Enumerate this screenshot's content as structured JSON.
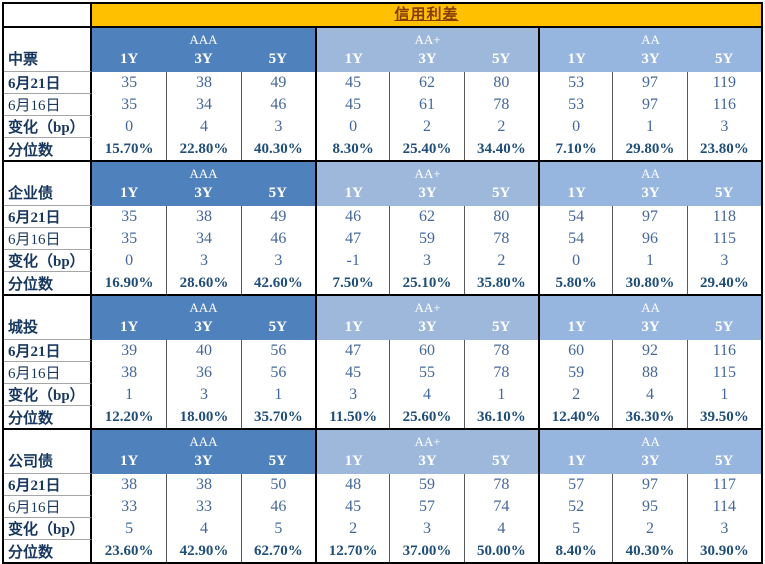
{
  "title": "信用利差",
  "table": {
    "ratings": [
      "AAA",
      "AA+",
      "AA"
    ],
    "tenors": [
      "1Y",
      "3Y",
      "5Y"
    ],
    "row_labels": [
      "6月21日",
      "6月16日",
      "变化（bp）",
      "分位数"
    ],
    "sections": [
      {
        "name": "中票",
        "rows": [
          [
            "35",
            "38",
            "49",
            "45",
            "62",
            "80",
            "53",
            "97",
            "119"
          ],
          [
            "35",
            "34",
            "46",
            "45",
            "61",
            "78",
            "53",
            "97",
            "116"
          ],
          [
            "0",
            "4",
            "3",
            "0",
            "2",
            "2",
            "0",
            "1",
            "3"
          ],
          [
            "15.70%",
            "22.80%",
            "40.30%",
            "8.30%",
            "25.40%",
            "34.40%",
            "7.10%",
            "29.80%",
            "23.80%"
          ]
        ]
      },
      {
        "name": "企业债",
        "rows": [
          [
            "35",
            "38",
            "49",
            "46",
            "62",
            "80",
            "54",
            "97",
            "118"
          ],
          [
            "35",
            "34",
            "46",
            "47",
            "59",
            "78",
            "54",
            "96",
            "115"
          ],
          [
            "0",
            "3",
            "3",
            "-1",
            "3",
            "2",
            "0",
            "1",
            "3"
          ],
          [
            "16.90%",
            "28.60%",
            "42.60%",
            "7.50%",
            "25.10%",
            "35.80%",
            "5.80%",
            "30.80%",
            "29.40%"
          ]
        ]
      },
      {
        "name": "城投",
        "rows": [
          [
            "39",
            "40",
            "56",
            "47",
            "60",
            "78",
            "60",
            "92",
            "116"
          ],
          [
            "38",
            "36",
            "56",
            "45",
            "55",
            "78",
            "59",
            "88",
            "115"
          ],
          [
            "1",
            "3",
            "1",
            "3",
            "4",
            "1",
            "2",
            "4",
            "1"
          ],
          [
            "12.20%",
            "18.00%",
            "35.70%",
            "11.50%",
            "25.60%",
            "36.10%",
            "12.40%",
            "36.30%",
            "39.50%"
          ]
        ]
      },
      {
        "name": "公司债",
        "rows": [
          [
            "38",
            "38",
            "50",
            "48",
            "59",
            "78",
            "57",
            "97",
            "117"
          ],
          [
            "33",
            "33",
            "46",
            "45",
            "57",
            "74",
            "52",
            "95",
            "114"
          ],
          [
            "5",
            "4",
            "5",
            "2",
            "3",
            "4",
            "5",
            "2",
            "3"
          ],
          [
            "23.60%",
            "42.90%",
            "62.70%",
            "12.70%",
            "37.00%",
            "50.00%",
            "8.40%",
            "40.30%",
            "30.90%"
          ]
        ]
      }
    ]
  },
  "colors": {
    "title_bg": "#FFC000",
    "title_text": "#843C0C",
    "rating_aaa_bg": "#4F81BD",
    "rating_aaplus_bg": "#9DB8DA",
    "rating_aa_bg": "#96B5DF",
    "header_text": "#FFFFFF",
    "label_text": "#17375E",
    "value_text": "#44679C",
    "percentile_text": "#1F4E79"
  }
}
